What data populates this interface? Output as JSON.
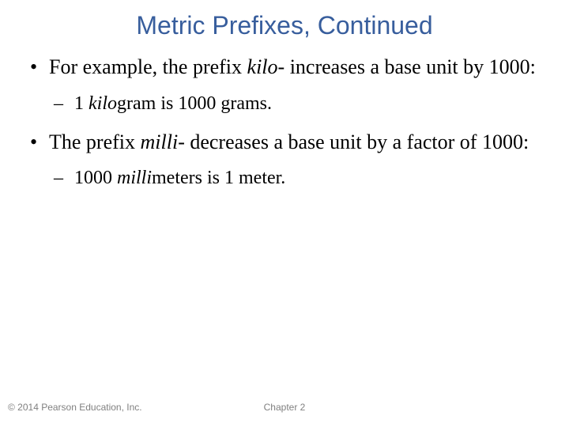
{
  "title": "Metric Prefixes, Continued",
  "bullets": {
    "b1_pre": "For example, the prefix ",
    "b1_italic": "kilo",
    "b1_post": "- increases a base unit by 1000:",
    "b2_pre": "1 ",
    "b2_italic": "kilo",
    "b2_post": "gram is 1000 grams.",
    "b3_pre": "The prefix ",
    "b3_italic": "milli",
    "b3_post": "- decreases a base unit by a factor of 1000:",
    "b4_pre": "1000 ",
    "b4_italic": "milli",
    "b4_post": "meters is 1 meter."
  },
  "footer": {
    "copyright": "© 2014 Pearson Education, Inc.",
    "chapter": "Chapter 2"
  },
  "colors": {
    "title": "#385e9d",
    "body": "#000000",
    "footer": "#808080",
    "background": "#ffffff"
  },
  "typography": {
    "title_fontsize": 32,
    "body_fontsize": 26,
    "sub_fontsize": 24,
    "footer_fontsize": 12,
    "title_family": "Arial",
    "body_family": "Times New Roman"
  }
}
